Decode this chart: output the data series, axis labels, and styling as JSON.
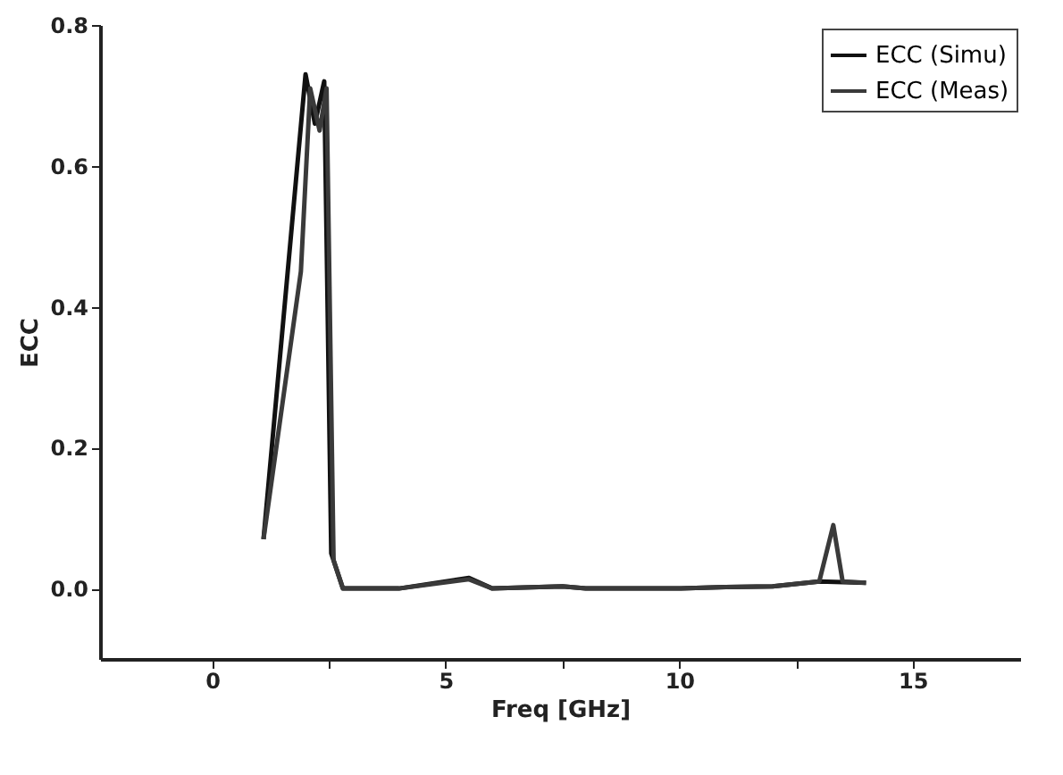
{
  "chart_data": {
    "type": "line",
    "xlabel": "Freq [GHz]",
    "ylabel": "ECC",
    "xlim": [
      -2.4,
      17.3
    ],
    "xticks": [
      0,
      {
        "value": 2.5,
        "label": null
      },
      5,
      {
        "value": 7.5,
        "label": null
      },
      10,
      {
        "value": 12.5,
        "label": null
      },
      15
    ],
    "ylim": [
      -0.1,
      0.8
    ],
    "yticks": [
      "0.0",
      0.2,
      0.4,
      0.6,
      0.8
    ],
    "legend": "top right",
    "grid": false,
    "line_style": "solid",
    "series": [
      {
        "name": "ECC (Simu)",
        "color": "#111111",
        "x": [
          1.1,
          2.0,
          2.2,
          2.4,
          2.55,
          2.8,
          4.0,
          5.5,
          6.0,
          7.5,
          8.0,
          10.0,
          11.0,
          12.0,
          13.0,
          14.0
        ],
        "values": [
          0.07,
          0.73,
          0.66,
          0.72,
          0.05,
          0.0,
          0.0,
          0.015,
          0.0,
          0.003,
          0.0,
          0.0,
          0.002,
          0.003,
          0.01,
          0.008
        ]
      },
      {
        "name": "ECC (Meas)",
        "color": "#3a3a3a",
        "x": [
          1.1,
          1.9,
          2.1,
          2.3,
          2.45,
          2.6,
          2.8,
          4.0,
          5.5,
          6.0,
          7.5,
          8.0,
          10.0,
          11.0,
          12.0,
          13.0,
          13.3,
          13.5,
          14.0
        ],
        "values": [
          0.07,
          0.45,
          0.71,
          0.65,
          0.71,
          0.04,
          0.0,
          0.0,
          0.013,
          0.0,
          0.003,
          0.0,
          0.0,
          0.002,
          0.003,
          0.01,
          0.09,
          0.01,
          0.008
        ]
      }
    ]
  }
}
